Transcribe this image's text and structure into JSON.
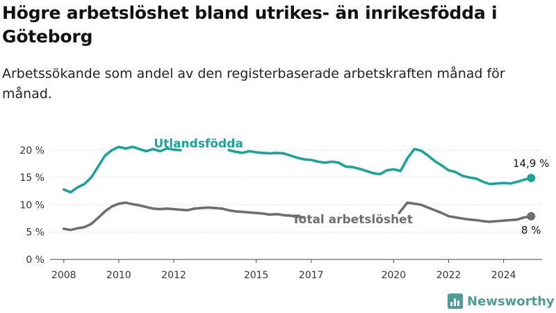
{
  "header": {
    "title": "Högre arbetslöshet bland utrikes- än inrikesfödda i Göteborg",
    "subtitle": "Arbetssökande som andel av den registerbaserade arbetskraften månad för månad."
  },
  "brand": {
    "name": "Newsworthy",
    "icon": "bar-chart-logo-icon",
    "color": "#4e9e93"
  },
  "chart_data": {
    "type": "line",
    "title": "Högre arbetslöshet bland utrikes- än inrikesfödda i Göteborg",
    "subtitle": "Arbetssökande som andel av den registerbaserade arbetskraften månad för månad.",
    "xlabel": "",
    "ylabel": "",
    "x_ticks": [
      "2008",
      "2010",
      "2012",
      "2015",
      "2017",
      "2020",
      "2022",
      "2024"
    ],
    "x_tick_values": [
      2008.0,
      2010.0,
      2012.0,
      2015.0,
      2017.0,
      2020.0,
      2022.0,
      2024.0
    ],
    "xlim": [
      2007.5,
      2025.4
    ],
    "y_ticks": [
      "0 %",
      "5 %",
      "10 %",
      "15 %",
      "20 %"
    ],
    "y_tick_values": [
      0,
      5,
      10,
      15,
      20
    ],
    "ylim": [
      0,
      21
    ],
    "grid": "horizontal",
    "legend": "inline labels",
    "series": [
      {
        "name": "Utlandsfödda",
        "color": "#1aa39a",
        "end_label": "14,9 %",
        "points": [
          [
            2008.0,
            12.8
          ],
          [
            2008.25,
            12.3
          ],
          [
            2008.5,
            13.2
          ],
          [
            2008.75,
            13.8
          ],
          [
            2009.0,
            15.0
          ],
          [
            2009.25,
            17.0
          ],
          [
            2009.5,
            19.0
          ],
          [
            2009.75,
            20.0
          ],
          [
            2010.0,
            20.6
          ],
          [
            2010.25,
            20.3
          ],
          [
            2010.5,
            20.6
          ],
          [
            2010.75,
            20.2
          ],
          [
            2011.0,
            19.8
          ],
          [
            2011.25,
            20.2
          ],
          [
            2011.5,
            19.8
          ],
          [
            2011.75,
            20.3
          ],
          [
            2012.0,
            20.1
          ],
          [
            2012.25,
            20.0
          ],
          null,
          [
            2014.0,
            20.0
          ],
          [
            2014.25,
            19.7
          ],
          [
            2014.5,
            19.5
          ],
          [
            2014.75,
            19.8
          ],
          [
            2015.0,
            19.6
          ],
          [
            2015.25,
            19.5
          ],
          [
            2015.5,
            19.4
          ],
          [
            2015.75,
            19.5
          ],
          [
            2016.0,
            19.4
          ],
          [
            2016.25,
            19.0
          ],
          [
            2016.5,
            18.6
          ],
          [
            2016.75,
            18.3
          ],
          [
            2017.0,
            18.2
          ],
          [
            2017.25,
            17.9
          ],
          [
            2017.5,
            17.7
          ],
          [
            2017.75,
            17.9
          ],
          [
            2018.0,
            17.7
          ],
          [
            2018.25,
            17.0
          ],
          [
            2018.5,
            16.9
          ],
          [
            2018.75,
            16.6
          ],
          [
            2019.0,
            16.2
          ],
          [
            2019.25,
            15.8
          ],
          [
            2019.5,
            15.6
          ],
          [
            2019.75,
            16.3
          ],
          [
            2020.0,
            16.5
          ],
          [
            2020.25,
            16.2
          ],
          [
            2020.5,
            18.5
          ],
          [
            2020.75,
            20.2
          ],
          [
            2021.0,
            19.9
          ],
          [
            2021.25,
            19.0
          ],
          [
            2021.5,
            18.0
          ],
          [
            2021.75,
            17.2
          ],
          [
            2022.0,
            16.3
          ],
          [
            2022.25,
            16.0
          ],
          [
            2022.5,
            15.3
          ],
          [
            2022.75,
            15.0
          ],
          [
            2023.0,
            14.8
          ],
          [
            2023.25,
            14.2
          ],
          [
            2023.5,
            13.8
          ],
          [
            2023.75,
            13.9
          ],
          [
            2024.0,
            14.0
          ],
          [
            2024.25,
            13.9
          ],
          [
            2024.5,
            14.2
          ],
          [
            2024.75,
            14.6
          ],
          [
            2025.0,
            14.9
          ]
        ]
      },
      {
        "name": "Total arbetslöshet",
        "color": "#6e6e6e",
        "end_label": "8 %",
        "points": [
          [
            2008.0,
            5.6
          ],
          [
            2008.25,
            5.4
          ],
          [
            2008.5,
            5.7
          ],
          [
            2008.75,
            5.9
          ],
          [
            2009.0,
            6.5
          ],
          [
            2009.25,
            7.6
          ],
          [
            2009.5,
            8.8
          ],
          [
            2009.75,
            9.7
          ],
          [
            2010.0,
            10.2
          ],
          [
            2010.25,
            10.4
          ],
          [
            2010.5,
            10.1
          ],
          [
            2010.75,
            9.9
          ],
          [
            2011.0,
            9.6
          ],
          [
            2011.25,
            9.3
          ],
          [
            2011.5,
            9.2
          ],
          [
            2011.75,
            9.3
          ],
          [
            2012.0,
            9.2
          ],
          [
            2012.25,
            9.1
          ],
          [
            2012.5,
            9.0
          ],
          [
            2012.75,
            9.3
          ],
          [
            2013.0,
            9.4
          ],
          [
            2013.25,
            9.5
          ],
          [
            2013.5,
            9.4
          ],
          [
            2013.75,
            9.3
          ],
          [
            2014.0,
            9.0
          ],
          [
            2014.25,
            8.8
          ],
          [
            2014.5,
            8.7
          ],
          [
            2014.75,
            8.6
          ],
          [
            2015.0,
            8.5
          ],
          [
            2015.25,
            8.4
          ],
          [
            2015.5,
            8.2
          ],
          [
            2015.75,
            8.3
          ],
          [
            2016.0,
            8.1
          ],
          [
            2016.25,
            8.0
          ],
          [
            2016.5,
            7.8
          ],
          [
            2016.75,
            7.7
          ],
          null,
          [
            2020.2,
            8.5
          ],
          [
            2020.5,
            10.4
          ],
          [
            2020.75,
            10.2
          ],
          [
            2021.0,
            10.0
          ],
          [
            2021.25,
            9.5
          ],
          [
            2021.5,
            9.0
          ],
          [
            2021.75,
            8.5
          ],
          [
            2022.0,
            7.9
          ],
          [
            2022.25,
            7.7
          ],
          [
            2022.5,
            7.5
          ],
          [
            2022.75,
            7.3
          ],
          [
            2023.0,
            7.2
          ],
          [
            2023.25,
            7.0
          ],
          [
            2023.5,
            6.9
          ],
          [
            2023.75,
            7.0
          ],
          [
            2024.0,
            7.1
          ],
          [
            2024.25,
            7.2
          ],
          [
            2024.5,
            7.3
          ],
          [
            2024.75,
            7.7
          ],
          [
            2025.0,
            7.9
          ]
        ]
      }
    ]
  }
}
